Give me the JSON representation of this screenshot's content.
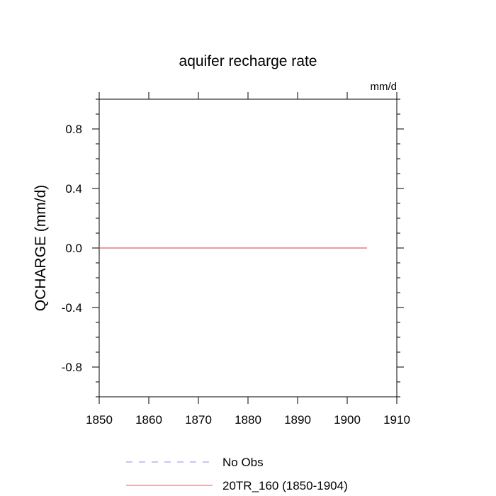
{
  "chart_data": {
    "type": "line",
    "title": "aquifer recharge rate",
    "units_label": "mm/d",
    "ylabel": "QCHARGE  (mm/d)",
    "xlabel": "",
    "xlim": [
      1850,
      1910
    ],
    "ylim": [
      -1.0,
      1.0
    ],
    "x_ticks": [
      1850,
      1860,
      1870,
      1880,
      1890,
      1900,
      1910
    ],
    "x_tick_labels": [
      "1850",
      "1860",
      "1870",
      "1880",
      "1890",
      "1900",
      "1910"
    ],
    "y_ticks": [
      -0.8,
      -0.4,
      0.0,
      0.4,
      0.8
    ],
    "y_tick_labels": [
      "-0.8",
      "-0.4",
      "0.0",
      "0.4",
      "0.8"
    ],
    "grid": false,
    "legend_position": "bottom",
    "series": [
      {
        "name": "No Obs",
        "color": "#8c8cf2",
        "dash": "dashed",
        "x": [],
        "y": []
      },
      {
        "name": "20TR_160 (1850-1904)",
        "color": "#e06060",
        "dash": "solid",
        "x": [
          1850,
          1904
        ],
        "y": [
          0.0,
          0.0
        ]
      }
    ]
  }
}
